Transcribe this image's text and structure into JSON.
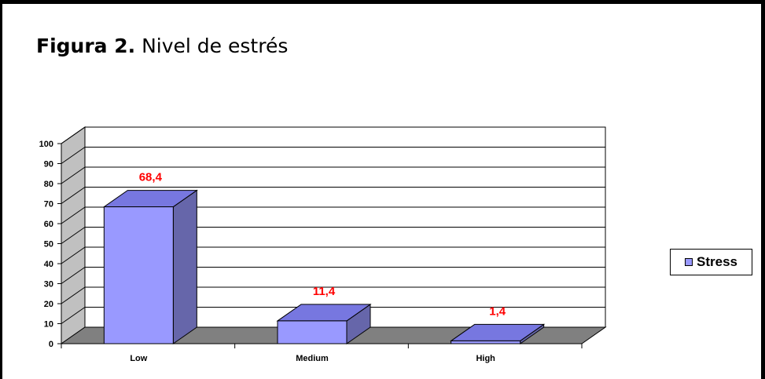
{
  "figure": {
    "label": "Figura 2.",
    "caption": "Nivel de estrés"
  },
  "colors": {
    "bar_front": "#9999ff",
    "bar_top": "#7777e0",
    "bar_side": "#6666aa",
    "floor": "#808080",
    "wall": "#c0c0c0",
    "value_label": "#ff0000"
  },
  "chart_data": {
    "type": "bar",
    "categories": [
      "Low",
      "Medium",
      "High"
    ],
    "series": [
      {
        "name": "Stress",
        "values": [
          68.4,
          11.4,
          1.4
        ]
      }
    ],
    "value_labels": [
      "68,4",
      "11,4",
      "1,4"
    ],
    "y_ticks": [
      "0",
      "10",
      "20",
      "30",
      "40",
      "50",
      "60",
      "70",
      "80",
      "90",
      "100"
    ],
    "ylim": [
      0,
      100
    ],
    "grid": true,
    "legend": "right",
    "three_d": true
  }
}
